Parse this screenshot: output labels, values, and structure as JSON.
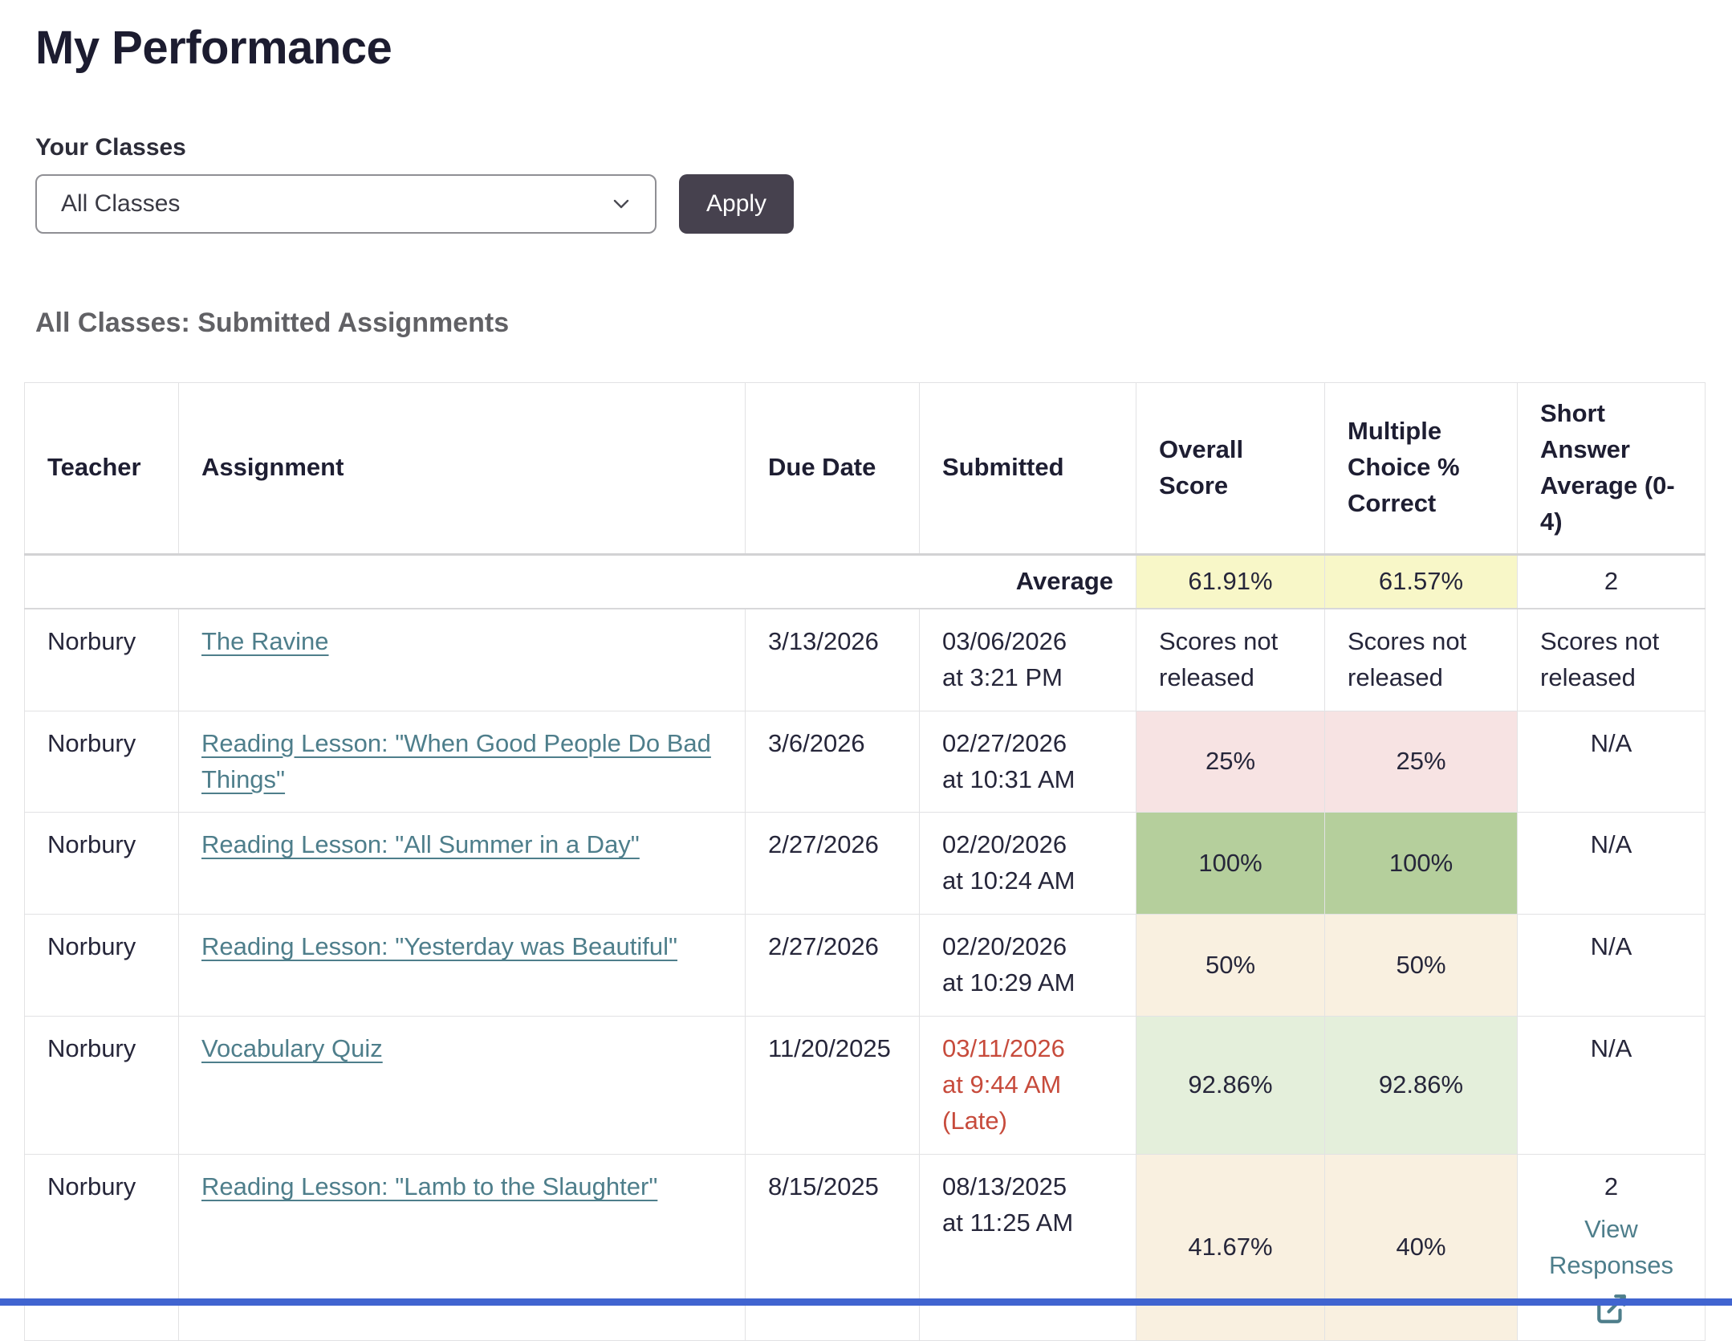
{
  "page": {
    "title": "My Performance"
  },
  "filter": {
    "label": "Your Classes",
    "selected": "All Classes",
    "apply_label": "Apply"
  },
  "section": {
    "heading": "All Classes: Submitted Assignments"
  },
  "icons": {
    "select_chevron": "chevron-down",
    "view_responses": "external-link"
  },
  "colors": {
    "accent_teal_link": "#4e7e8b",
    "late_red": "#c74b3c",
    "average_yellow": "#f8f7c8",
    "low_score_pink": "#f7e3e3",
    "full_score_green": "#b5cf9c",
    "high_score_lightgreen": "#e4efdb",
    "mid_score_tan": "#f9f0e0",
    "apply_button_bg": "#46414e"
  },
  "table": {
    "headers": [
      "Teacher",
      "Assignment",
      "Due Date",
      "Submitted",
      "Overall Score",
      "Multiple Choice % Correct",
      "Short Answer Average (0-4)"
    ],
    "average": {
      "label": "Average",
      "overall": "61.91%",
      "multiple_choice": "61.57%",
      "short_answer": "2"
    },
    "rows": [
      {
        "teacher": "Norbury",
        "assignment": "The Ravine",
        "due_date": "3/13/2026",
        "submitted_lines": [
          "03/06/2026",
          "at 3:21 PM"
        ],
        "submitted_late": false,
        "overall": {
          "text": "Scores not released",
          "bg": "none"
        },
        "multiple_choice": {
          "text": "Scores not released",
          "bg": "none"
        },
        "short_answer": {
          "text": "Scores not released",
          "style": "plain"
        }
      },
      {
        "teacher": "Norbury",
        "assignment": "Reading Lesson: \"When Good People Do Bad Things\"",
        "due_date": "3/6/2026",
        "submitted_lines": [
          "02/27/2026",
          "at 10:31 AM"
        ],
        "submitted_late": false,
        "overall": {
          "text": "25%",
          "bg": "pink"
        },
        "multiple_choice": {
          "text": "25%",
          "bg": "pink"
        },
        "short_answer": {
          "text": "N/A",
          "style": "center"
        }
      },
      {
        "teacher": "Norbury",
        "assignment": "Reading Lesson: \"All Summer in a Day\"",
        "due_date": "2/27/2026",
        "submitted_lines": [
          "02/20/2026",
          "at 10:24 AM"
        ],
        "submitted_late": false,
        "overall": {
          "text": "100%",
          "bg": "green"
        },
        "multiple_choice": {
          "text": "100%",
          "bg": "green"
        },
        "short_answer": {
          "text": "N/A",
          "style": "center"
        }
      },
      {
        "teacher": "Norbury",
        "assignment": "Reading Lesson: \"Yesterday was Beautiful\"",
        "due_date": "2/27/2026",
        "submitted_lines": [
          "02/20/2026",
          "at 10:29 AM"
        ],
        "submitted_late": false,
        "overall": {
          "text": "50%",
          "bg": "tan"
        },
        "multiple_choice": {
          "text": "50%",
          "bg": "tan"
        },
        "short_answer": {
          "text": "N/A",
          "style": "center"
        }
      },
      {
        "teacher": "Norbury",
        "assignment": "Vocabulary Quiz",
        "due_date": "11/20/2025",
        "submitted_lines": [
          "03/11/2026",
          "at 9:44 AM",
          "(Late)"
        ],
        "submitted_late": true,
        "overall": {
          "text": "92.86%",
          "bg": "lightgreen"
        },
        "multiple_choice": {
          "text": "92.86%",
          "bg": "lightgreen"
        },
        "short_answer": {
          "text": "N/A",
          "style": "center"
        }
      },
      {
        "teacher": "Norbury",
        "assignment": "Reading Lesson: \"Lamb to the Slaughter\"",
        "due_date": "8/15/2025",
        "submitted_lines": [
          "08/13/2025",
          "at 11:25 AM"
        ],
        "submitted_late": false,
        "overall": {
          "text": "41.67%",
          "bg": "tan"
        },
        "multiple_choice": {
          "text": "40%",
          "bg": "tan"
        },
        "short_answer": {
          "score": "2",
          "link_label": "View Responses",
          "style": "center"
        }
      }
    ]
  }
}
